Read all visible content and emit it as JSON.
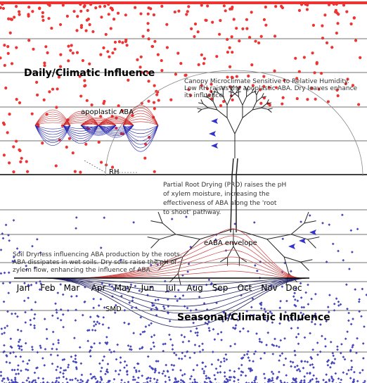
{
  "daily_title": "Daily/Climatic Influence",
  "seasonal_title": "Seasonal/Climatic Influence",
  "apoplastic_label": "apoplastic ABA",
  "rh_label": "RH",
  "canopy_note": [
    "Canopy Microclimate Sensitive to Relative Humidity.",
    "Low RH raises the apoplastic ABA. Dry leaves enhance",
    "its influence."
  ],
  "prd_note": [
    "Partial Root Drying (PRD) raises the pH",
    "of xylem moisture, increasing the",
    "effectiveness of ABA along the 'root",
    "to shoot' pathway."
  ],
  "envelope_label": "eABA envelope",
  "soil_note": [
    "Soil Dryness influencing ABA production by the roots.",
    "ABA dissipates in wet soils. Dry soils raise the pH of",
    "zylem flow, enhancing the influence of ABA."
  ],
  "smd_label": "SMD",
  "months": [
    "Jan",
    "Feb",
    "Mar",
    "Apr",
    "May",
    "Jun",
    "Jul",
    "Aug",
    "Sep",
    "Oct",
    "Nov",
    "Dec"
  ]
}
